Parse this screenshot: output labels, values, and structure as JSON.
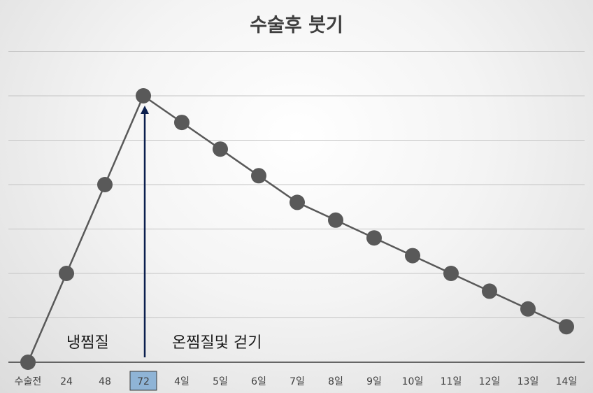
{
  "chart_data": {
    "type": "line",
    "title": "수술후 붓기",
    "categories": [
      "수술전",
      "24",
      "48",
      "72",
      "4일",
      "5일",
      "6일",
      "7일",
      "8일",
      "9일",
      "10일",
      "11일",
      "12일",
      "13일",
      "14일"
    ],
    "series": [
      {
        "values": [
          0,
          2,
          4,
          6,
          5.4,
          4.8,
          4.2,
          3.6,
          3.2,
          2.8,
          2.4,
          2.0,
          1.6,
          1.2,
          0.8
        ]
      }
    ],
    "ylim": [
      0,
      7
    ],
    "grid": true,
    "highlight_category": "72",
    "annotations": [
      {
        "text": "냉찜질"
      },
      {
        "text": "온찜질및 걷기"
      }
    ],
    "colors": {
      "line": "#595959",
      "marker": "#595959",
      "arrow": "#0b1f4e",
      "highlight_fill": "#8fb4d6"
    }
  }
}
